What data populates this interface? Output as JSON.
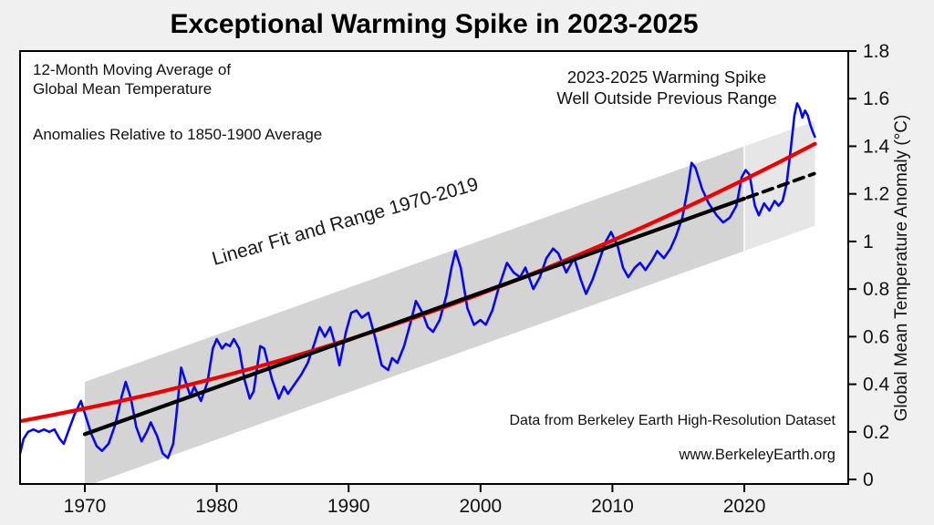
{
  "figure": {
    "title": "Exceptional Warming Spike in 2023-2025",
    "annotations": {
      "series_label_line1": "12-Month Moving Average of",
      "series_label_line2": "Global Mean Temperature",
      "baseline_note": "Anomalies Relative to 1850-1900 Average",
      "spike_note_line1": "2023-2025 Warming Spike",
      "spike_note_line2": "Well Outside Previous Range",
      "fit_label": "Linear Fit and Range 1970-2019",
      "source_note": "Data from Berkeley Earth High-Resolution Dataset",
      "website": "www.BerkeleyEarth.org"
    },
    "colors": {
      "figure_background": "#f0f0f0",
      "plot_background": "#ffffff",
      "axis": "#000000",
      "moving_average": "#0808f0",
      "accelerating_fit": "#f20000",
      "linear_fit": "#000000",
      "range_band": "#d4d4d4",
      "range_band_extrapolated": "#e6e6e6"
    }
  },
  "chart_data": {
    "type": "line",
    "title": "Exceptional Warming Spike in 2023-2025",
    "xlabel": "",
    "ylabel": "Global Mean Temperature Anomaly (°C)",
    "grid": false,
    "legend_position": "none",
    "x_ticks": [
      1970,
      1980,
      1990,
      2000,
      2010,
      2020
    ],
    "y_ticks": [
      0,
      0.2,
      0.4,
      0.6,
      0.8,
      1,
      1.2,
      1.4,
      1.6,
      1.8
    ],
    "x_domain": [
      1965.09,
      2027.88
    ],
    "y_domain": [
      -0.019,
      1.8
    ],
    "bands": [
      {
        "name": "range-1970-2019",
        "color": "#d4d4d4",
        "points": [
          [
            1970,
            -0.03
          ],
          [
            1970,
            0.41
          ],
          [
            2020,
            1.4
          ],
          [
            2020,
            0.96
          ]
        ]
      },
      {
        "name": "range-extrapolated",
        "color": "#e6e6e6",
        "points": [
          [
            2020,
            0.96
          ],
          [
            2020,
            1.4
          ],
          [
            2025.35,
            1.506
          ],
          [
            2025.35,
            1.066
          ]
        ]
      }
    ],
    "band_boundary_year": 2020,
    "series": [
      {
        "name": "12-month moving average",
        "color": "#0808f0",
        "width": 2.6,
        "dash": "",
        "points": [
          [
            1965.1,
            0.11
          ],
          [
            1965.35,
            0.17
          ],
          [
            1965.7,
            0.2
          ],
          [
            1966.1,
            0.21
          ],
          [
            1966.5,
            0.2
          ],
          [
            1966.9,
            0.21
          ],
          [
            1967.3,
            0.2
          ],
          [
            1967.7,
            0.21
          ],
          [
            1968.1,
            0.17
          ],
          [
            1968.4,
            0.15
          ],
          [
            1968.8,
            0.21
          ],
          [
            1969.2,
            0.27
          ],
          [
            1969.7,
            0.33
          ],
          [
            1970.1,
            0.26
          ],
          [
            1970.5,
            0.19
          ],
          [
            1970.9,
            0.14
          ],
          [
            1971.3,
            0.12
          ],
          [
            1971.8,
            0.15
          ],
          [
            1972.3,
            0.23
          ],
          [
            1972.8,
            0.35
          ],
          [
            1973.1,
            0.41
          ],
          [
            1973.5,
            0.34
          ],
          [
            1973.9,
            0.22
          ],
          [
            1974.3,
            0.16
          ],
          [
            1974.7,
            0.2
          ],
          [
            1975.0,
            0.24
          ],
          [
            1975.5,
            0.18
          ],
          [
            1975.9,
            0.11
          ],
          [
            1976.3,
            0.09
          ],
          [
            1976.7,
            0.15
          ],
          [
            1976.9,
            0.25
          ],
          [
            1977.3,
            0.47
          ],
          [
            1977.7,
            0.4
          ],
          [
            1978.0,
            0.35
          ],
          [
            1978.3,
            0.39
          ],
          [
            1978.8,
            0.33
          ],
          [
            1979.3,
            0.41
          ],
          [
            1979.7,
            0.55
          ],
          [
            1980.0,
            0.59
          ],
          [
            1980.4,
            0.55
          ],
          [
            1980.7,
            0.57
          ],
          [
            1981.0,
            0.56
          ],
          [
            1981.3,
            0.59
          ],
          [
            1981.7,
            0.55
          ],
          [
            1982.1,
            0.42
          ],
          [
            1982.5,
            0.34
          ],
          [
            1982.8,
            0.37
          ],
          [
            1983.3,
            0.56
          ],
          [
            1983.6,
            0.55
          ],
          [
            1984.2,
            0.42
          ],
          [
            1984.7,
            0.34
          ],
          [
            1985.1,
            0.39
          ],
          [
            1985.4,
            0.36
          ],
          [
            1985.9,
            0.4
          ],
          [
            1986.4,
            0.44
          ],
          [
            1986.9,
            0.49
          ],
          [
            1987.4,
            0.57
          ],
          [
            1987.8,
            0.64
          ],
          [
            1988.2,
            0.6
          ],
          [
            1988.6,
            0.64
          ],
          [
            1989.0,
            0.56
          ],
          [
            1989.3,
            0.48
          ],
          [
            1989.8,
            0.62
          ],
          [
            1990.2,
            0.7
          ],
          [
            1990.6,
            0.71
          ],
          [
            1991.0,
            0.68
          ],
          [
            1991.5,
            0.7
          ],
          [
            1992.0,
            0.6
          ],
          [
            1992.5,
            0.48
          ],
          [
            1993.0,
            0.46
          ],
          [
            1993.3,
            0.51
          ],
          [
            1993.7,
            0.49
          ],
          [
            1994.2,
            0.56
          ],
          [
            1994.7,
            0.66
          ],
          [
            1995.1,
            0.75
          ],
          [
            1995.6,
            0.7
          ],
          [
            1996.0,
            0.64
          ],
          [
            1996.4,
            0.62
          ],
          [
            1996.9,
            0.67
          ],
          [
            1997.4,
            0.77
          ],
          [
            1997.8,
            0.89
          ],
          [
            1998.1,
            0.96
          ],
          [
            1998.5,
            0.89
          ],
          [
            1999.0,
            0.72
          ],
          [
            1999.5,
            0.65
          ],
          [
            2000.0,
            0.67
          ],
          [
            2000.4,
            0.65
          ],
          [
            2000.9,
            0.71
          ],
          [
            2001.4,
            0.81
          ],
          [
            2002.0,
            0.91
          ],
          [
            2002.5,
            0.87
          ],
          [
            2003.0,
            0.85
          ],
          [
            2003.4,
            0.89
          ],
          [
            2004.0,
            0.8
          ],
          [
            2004.5,
            0.85
          ],
          [
            2005.0,
            0.93
          ],
          [
            2005.5,
            0.97
          ],
          [
            2005.9,
            0.95
          ],
          [
            2006.5,
            0.87
          ],
          [
            2007.1,
            0.93
          ],
          [
            2007.6,
            0.84
          ],
          [
            2008.0,
            0.78
          ],
          [
            2008.5,
            0.84
          ],
          [
            2009.0,
            0.92
          ],
          [
            2009.5,
            1.0
          ],
          [
            2009.9,
            1.04
          ],
          [
            2010.4,
            0.98
          ],
          [
            2010.8,
            0.89
          ],
          [
            2011.2,
            0.85
          ],
          [
            2011.7,
            0.89
          ],
          [
            2012.1,
            0.91
          ],
          [
            2012.5,
            0.88
          ],
          [
            2013.0,
            0.92
          ],
          [
            2013.4,
            0.96
          ],
          [
            2013.9,
            0.93
          ],
          [
            2014.4,
            0.97
          ],
          [
            2014.8,
            1.02
          ],
          [
            2015.3,
            1.1
          ],
          [
            2015.7,
            1.22
          ],
          [
            2016.0,
            1.33
          ],
          [
            2016.3,
            1.31
          ],
          [
            2016.8,
            1.22
          ],
          [
            2017.3,
            1.16
          ],
          [
            2017.9,
            1.11
          ],
          [
            2018.4,
            1.08
          ],
          [
            2018.9,
            1.1
          ],
          [
            2019.4,
            1.15
          ],
          [
            2019.8,
            1.27
          ],
          [
            2020.1,
            1.3
          ],
          [
            2020.4,
            1.28
          ],
          [
            2020.8,
            1.15
          ],
          [
            2021.1,
            1.11
          ],
          [
            2021.5,
            1.16
          ],
          [
            2021.9,
            1.13
          ],
          [
            2022.3,
            1.17
          ],
          [
            2022.6,
            1.15
          ],
          [
            2022.9,
            1.17
          ],
          [
            2023.2,
            1.24
          ],
          [
            2023.5,
            1.38
          ],
          [
            2023.8,
            1.53
          ],
          [
            2024.0,
            1.58
          ],
          [
            2024.2,
            1.56
          ],
          [
            2024.4,
            1.52
          ],
          [
            2024.6,
            1.55
          ],
          [
            2024.8,
            1.53
          ],
          [
            2025.0,
            1.49
          ],
          [
            2025.2,
            1.46
          ],
          [
            2025.35,
            1.44
          ]
        ]
      },
      {
        "name": "accelerating fit",
        "color": "#f20000",
        "width": 4.2,
        "dash": "",
        "points": [
          [
            1965.09,
            0.245
          ],
          [
            1967.5,
            0.27
          ],
          [
            1970,
            0.298
          ],
          [
            1972.5,
            0.327
          ],
          [
            1975,
            0.358
          ],
          [
            1977.5,
            0.392
          ],
          [
            1980,
            0.427
          ],
          [
            1982.5,
            0.464
          ],
          [
            1985,
            0.503
          ],
          [
            1987.5,
            0.545
          ],
          [
            1990,
            0.588
          ],
          [
            1992.5,
            0.633
          ],
          [
            1995,
            0.68
          ],
          [
            1997.5,
            0.729
          ],
          [
            2000,
            0.78
          ],
          [
            2002.5,
            0.833
          ],
          [
            2005,
            0.888
          ],
          [
            2007.5,
            0.945
          ],
          [
            2010,
            1.004
          ],
          [
            2012.5,
            1.065
          ],
          [
            2015,
            1.128
          ],
          [
            2017.5,
            1.193
          ],
          [
            2020,
            1.26
          ],
          [
            2022.5,
            1.329
          ],
          [
            2025.35,
            1.41
          ]
        ]
      },
      {
        "name": "linear fit 1970-2019",
        "color": "#000000",
        "width": 4.2,
        "dash": "",
        "points": [
          [
            1970,
            0.19
          ],
          [
            2020,
            1.18
          ]
        ]
      },
      {
        "name": "linear fit extrapolation",
        "color": "#000000",
        "width": 3.8,
        "dash": "11 7",
        "points": [
          [
            2020.25,
            1.185
          ],
          [
            2025.3,
            1.285
          ]
        ]
      }
    ]
  }
}
